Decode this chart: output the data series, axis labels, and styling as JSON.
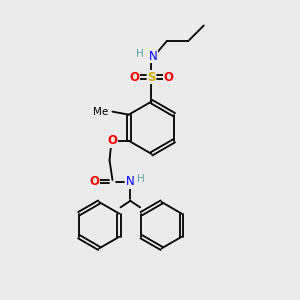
{
  "background_color": "#ebebeb",
  "atom_colors": {
    "C": "#000000",
    "H": "#5fa0a0",
    "N": "#0000ff",
    "O": "#ff0000",
    "S": "#ccaa00"
  },
  "figsize": [
    3.0,
    3.0
  ],
  "dpi": 100
}
